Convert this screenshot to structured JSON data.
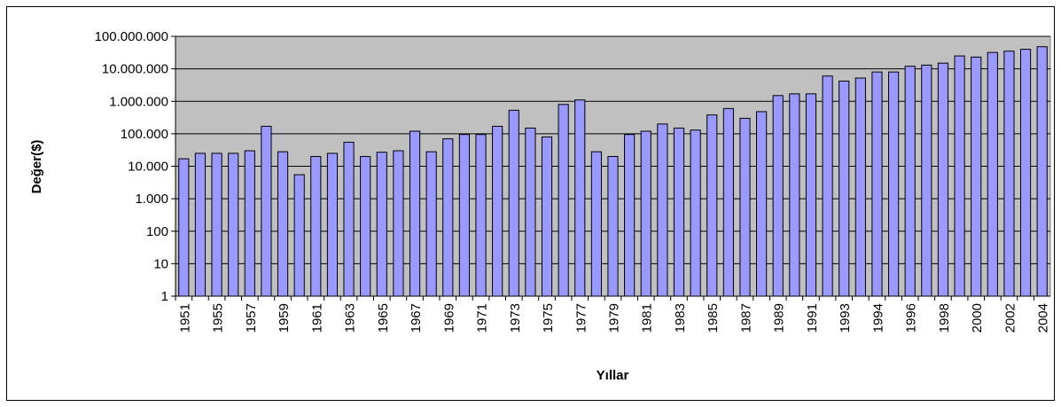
{
  "chart_data": {
    "type": "bar",
    "y_label": "Değer($)",
    "x_label": "Yıllar",
    "categories": [
      "1951",
      null,
      "1955",
      null,
      "1957",
      null,
      "1959",
      null,
      "1961",
      null,
      "1963",
      null,
      "1965",
      null,
      "1967",
      null,
      "1969",
      null,
      "1971",
      null,
      "1973",
      null,
      "1975",
      null,
      "1977",
      null,
      "1979",
      null,
      "1981",
      null,
      "1983",
      null,
      "1985",
      null,
      "1987",
      null,
      "1989",
      null,
      "1991",
      null,
      "1993",
      null,
      "1994",
      null,
      "1996",
      null,
      "1998",
      null,
      "2000",
      null,
      "2002",
      null,
      "2004"
    ],
    "values": [
      17000,
      25000,
      25000,
      25000,
      30000,
      170000,
      28000,
      5500,
      20000,
      25000,
      55000,
      20000,
      27000,
      30000,
      120000,
      28000,
      70000,
      95000,
      95000,
      170000,
      530000,
      150000,
      80000,
      800000,
      1100000,
      28000,
      20000,
      95000,
      120000,
      200000,
      150000,
      130000,
      380000,
      600000,
      300000,
      480000,
      1500000,
      1700000,
      1700000,
      6000000,
      4200000,
      5200000,
      8000000,
      8000000,
      12000000,
      13000000,
      15000000,
      25000000,
      23000000,
      32000000,
      35000000,
      40000000,
      48000000
    ],
    "color": "#9999ff",
    "plot_background": "#c0c0c0",
    "log_y": true,
    "grid": true,
    "ylim": [
      1,
      100000000
    ],
    "yticks": [
      1,
      10,
      100,
      {
        "value": 1000,
        "label": "1.000"
      },
      {
        "value": 10000,
        "label": "10.000"
      },
      {
        "value": 100000,
        "label": "100.000"
      },
      {
        "value": 1000000,
        "label": "1.000.000"
      },
      {
        "value": 10000000,
        "label": "10.000.000"
      },
      {
        "value": 100000000,
        "label": "100.000.000"
      }
    ]
  }
}
